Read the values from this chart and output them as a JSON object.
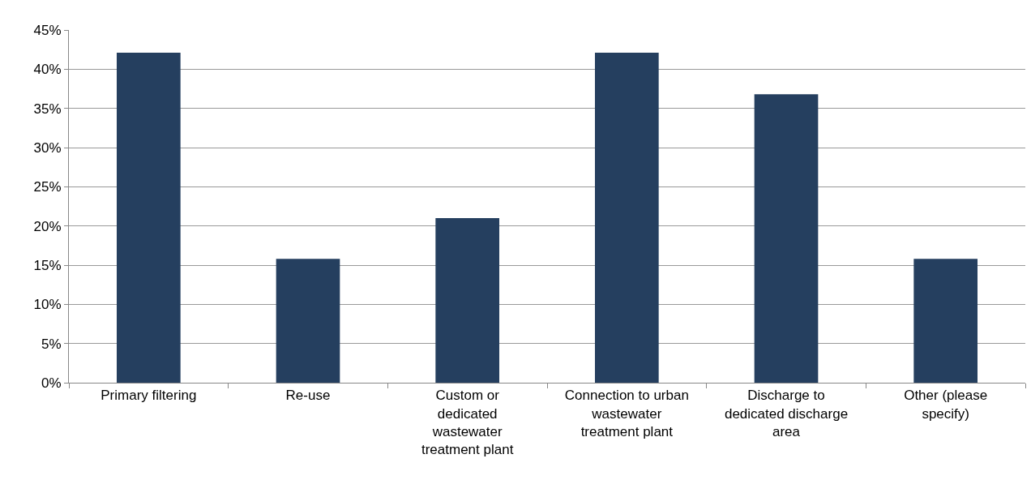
{
  "chart_data": {
    "type": "bar",
    "categories": [
      "Primary filtering",
      "Re-use",
      "Custom or\ndedicated\nwastewater\ntreatment plant",
      "Connection to urban\nwastewater\ntreatment plant",
      "Discharge to\ndedicated discharge\narea",
      "Other (please\nspecify)"
    ],
    "values": [
      42.1,
      15.8,
      21.0,
      42.1,
      36.8,
      15.8
    ],
    "color": "#253f5f",
    "ylim": [
      0,
      45
    ],
    "yticks": [
      {
        "value": 0,
        "label": "0%"
      },
      {
        "value": 5,
        "label": "5%"
      },
      {
        "value": 10,
        "label": "10%"
      },
      {
        "value": 15,
        "label": "15%"
      },
      {
        "value": 20,
        "label": "20%"
      },
      {
        "value": 25,
        "label": "25%"
      },
      {
        "value": 30,
        "label": "30%"
      },
      {
        "value": 35,
        "label": "35%"
      },
      {
        "value": 40,
        "label": "40%"
      },
      {
        "value": 45,
        "label": "45%"
      }
    ],
    "grid": "y"
  }
}
